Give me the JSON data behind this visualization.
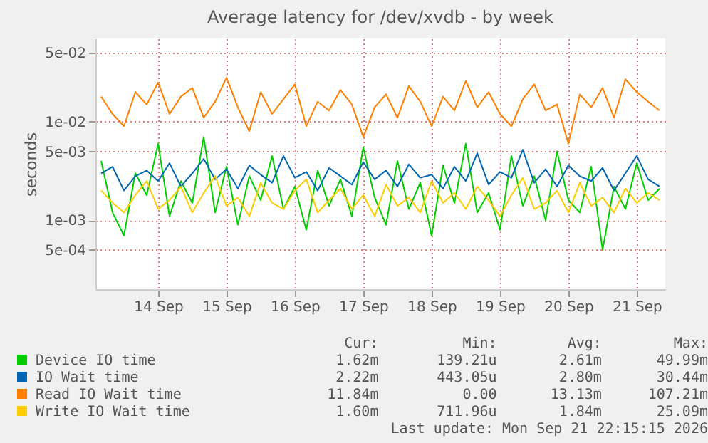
{
  "chart_data": {
    "type": "line",
    "title": "Average latency for /dev/xvdb - by week",
    "ylabel": "seconds",
    "x": [
      "2026-09-13T16:00",
      "2026-09-13T20:00",
      "2026-09-14T00:00",
      "2026-09-14T04:00",
      "2026-09-14T08:00",
      "2026-09-14T12:00",
      "2026-09-14T16:00",
      "2026-09-14T20:00",
      "2026-09-15T00:00",
      "2026-09-15T04:00",
      "2026-09-15T08:00",
      "2026-09-15T12:00",
      "2026-09-15T16:00",
      "2026-09-15T20:00",
      "2026-09-16T00:00",
      "2026-09-16T04:00",
      "2026-09-16T08:00",
      "2026-09-16T12:00",
      "2026-09-16T16:00",
      "2026-09-16T20:00",
      "2026-09-17T00:00",
      "2026-09-17T04:00",
      "2026-09-17T08:00",
      "2026-09-17T12:00",
      "2026-09-17T16:00",
      "2026-09-17T20:00",
      "2026-09-18T00:00",
      "2026-09-18T04:00",
      "2026-09-18T08:00",
      "2026-09-18T12:00",
      "2026-09-18T16:00",
      "2026-09-18T20:00",
      "2026-09-19T00:00",
      "2026-09-19T04:00",
      "2026-09-19T08:00",
      "2026-09-19T12:00",
      "2026-09-19T16:00",
      "2026-09-19T20:00",
      "2026-09-20T00:00",
      "2026-09-20T04:00",
      "2026-09-20T08:00",
      "2026-09-20T12:00",
      "2026-09-20T16:00",
      "2026-09-20T20:00",
      "2026-09-21T00:00",
      "2026-09-21T04:00",
      "2026-09-21T08:00",
      "2026-09-21T12:00",
      "2026-09-21T16:00",
      "2026-09-21T20:00"
    ],
    "series": [
      {
        "name": "Device IO time",
        "color": "#00cc00",
        "values": [
          0.004,
          0.0012,
          0.0007,
          0.003,
          0.0018,
          0.006,
          0.0011,
          0.0025,
          0.0015,
          0.007,
          0.0012,
          0.0035,
          0.0009,
          0.0028,
          0.0016,
          0.0045,
          0.0013,
          0.0022,
          0.0008,
          0.0032,
          0.0014,
          0.0026,
          0.0011,
          0.0055,
          0.0017,
          0.0009,
          0.004,
          0.0013,
          0.0024,
          0.0007,
          0.0036,
          0.0015,
          0.006,
          0.0012,
          0.0019,
          0.0008,
          0.0045,
          0.0014,
          0.0028,
          0.001,
          0.005,
          0.0016,
          0.0012,
          0.0035,
          0.0005,
          0.0022,
          0.0013,
          0.0038,
          0.0016,
          0.0021
        ]
      },
      {
        "name": "IO Wait time",
        "color": "#0066b3",
        "values": [
          0.003,
          0.0035,
          0.002,
          0.0028,
          0.0032,
          0.0025,
          0.0038,
          0.0022,
          0.003,
          0.0042,
          0.0026,
          0.0033,
          0.0021,
          0.0036,
          0.0029,
          0.0024,
          0.0045,
          0.0027,
          0.0031,
          0.002,
          0.0034,
          0.0028,
          0.0023,
          0.0039,
          0.0026,
          0.0032,
          0.0022,
          0.0037,
          0.0027,
          0.0029,
          0.0021,
          0.0035,
          0.0025,
          0.0048,
          0.0023,
          0.0031,
          0.0027,
          0.0052,
          0.0024,
          0.0033,
          0.0022,
          0.0036,
          0.0028,
          0.0025,
          0.0034,
          0.002,
          0.003,
          0.0045,
          0.0026,
          0.0022
        ]
      },
      {
        "name": "Read IO Wait time",
        "color": "#ff8000",
        "values": [
          0.018,
          0.012,
          0.009,
          0.02,
          0.015,
          0.025,
          0.012,
          0.018,
          0.022,
          0.011,
          0.016,
          0.028,
          0.014,
          0.008,
          0.02,
          0.012,
          0.017,
          0.024,
          0.009,
          0.016,
          0.013,
          0.021,
          0.015,
          0.007,
          0.014,
          0.019,
          0.011,
          0.023,
          0.016,
          0.009,
          0.018,
          0.013,
          0.026,
          0.014,
          0.02,
          0.012,
          0.009,
          0.017,
          0.024,
          0.013,
          0.015,
          0.006,
          0.019,
          0.014,
          0.022,
          0.011,
          0.027,
          0.02,
          0.016,
          0.013
        ]
      },
      {
        "name": "Write IO Wait time",
        "color": "#ffcc00",
        "values": [
          0.002,
          0.0015,
          0.0012,
          0.0018,
          0.0025,
          0.0013,
          0.0016,
          0.0022,
          0.0012,
          0.0019,
          0.0028,
          0.0014,
          0.0017,
          0.0011,
          0.0024,
          0.0015,
          0.0013,
          0.002,
          0.0026,
          0.0012,
          0.0016,
          0.0021,
          0.0013,
          0.0018,
          0.0011,
          0.0023,
          0.0014,
          0.0017,
          0.0012,
          0.0025,
          0.0015,
          0.0019,
          0.0013,
          0.0022,
          0.0016,
          0.0011,
          0.0018,
          0.0027,
          0.0013,
          0.0015,
          0.002,
          0.0012,
          0.0024,
          0.0014,
          0.0017,
          0.0012,
          0.0021,
          0.0015,
          0.0019,
          0.0016
        ]
      }
    ],
    "log": true,
    "xlim": [
      "2026-09-13T14:00",
      "2026-09-21T22:00"
    ],
    "xticks": [
      {
        "value": "2026-09-14T12:00",
        "label": "14 Sep"
      },
      {
        "value": "2026-09-15T12:00",
        "label": "15 Sep"
      },
      {
        "value": "2026-09-16T12:00",
        "label": "16 Sep"
      },
      {
        "value": "2026-09-17T12:00",
        "label": "17 Sep"
      },
      {
        "value": "2026-09-18T12:00",
        "label": "18 Sep"
      },
      {
        "value": "2026-09-19T12:00",
        "label": "19 Sep"
      },
      {
        "value": "2026-09-20T12:00",
        "label": "20 Sep"
      },
      {
        "value": "2026-09-21T12:00",
        "label": "21 Sep"
      }
    ],
    "ylim": [
      0.0002,
      0.07
    ],
    "yticks": [
      {
        "value": 0.0005,
        "label": "5e-04"
      },
      {
        "value": 0.001,
        "label": "1e-03"
      },
      {
        "value": 0.005,
        "label": "5e-03"
      },
      {
        "value": 0.01,
        "label": "1e-02"
      },
      {
        "value": 0.05,
        "label": "5e-02"
      }
    ],
    "grid": true,
    "legend": "bottom",
    "annotations": [
      "Cur:",
      "Min:",
      "Avg:",
      "Max:",
      "1.62m",
      "139.21u",
      "2.61m",
      "49.99m",
      "2.22m",
      "443.05u",
      "2.80m",
      "30.44m",
      "11.84m",
      "0.00",
      "13.13m",
      "107.21m",
      "1.60m",
      "711.96u",
      "1.84m",
      "25.09m",
      "Last update: Mon Sep 21 22:15:15 2026"
    ]
  }
}
